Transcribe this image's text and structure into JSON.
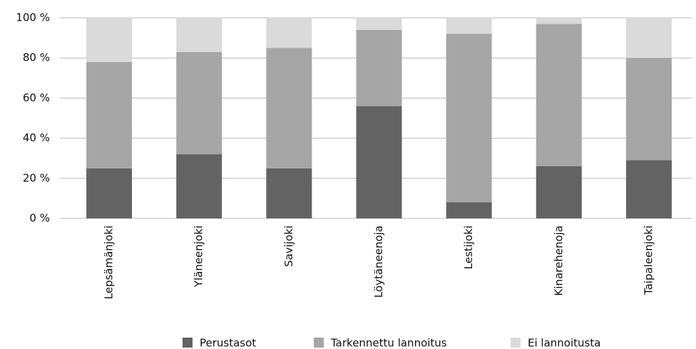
{
  "chart_data": {
    "type": "stacked-bar",
    "categories": [
      "Lepsämänjoki",
      "Yläneenjoki",
      "Savijoki",
      "Löytäneenoja",
      "Lestijoki",
      "Kinarehenoja",
      "Taipaleenjoki"
    ],
    "series": [
      {
        "name": "Perustasot",
        "color": "#636363",
        "values": [
          25,
          32,
          25,
          56,
          8,
          26,
          29
        ]
      },
      {
        "name": "Tarkennettu lannoitus",
        "color": "#a6a6a6",
        "values": [
          53,
          51,
          60,
          38,
          84,
          71,
          51
        ]
      },
      {
        "name": "Ei lannoitusta",
        "color": "#dadada",
        "values": [
          22,
          17,
          15,
          6,
          8,
          3,
          20
        ]
      }
    ],
    "ylim": [
      0,
      100
    ],
    "yticks": [
      {
        "value": 0,
        "label": "0 %"
      },
      {
        "value": 20,
        "label": "20 %"
      },
      {
        "value": 40,
        "label": "40 %"
      },
      {
        "value": 60,
        "label": "60 %"
      },
      {
        "value": 80,
        "label": "80 %"
      },
      {
        "value": 100,
        "label": "100 %"
      }
    ],
    "grid": true,
    "legend": "bottom"
  }
}
